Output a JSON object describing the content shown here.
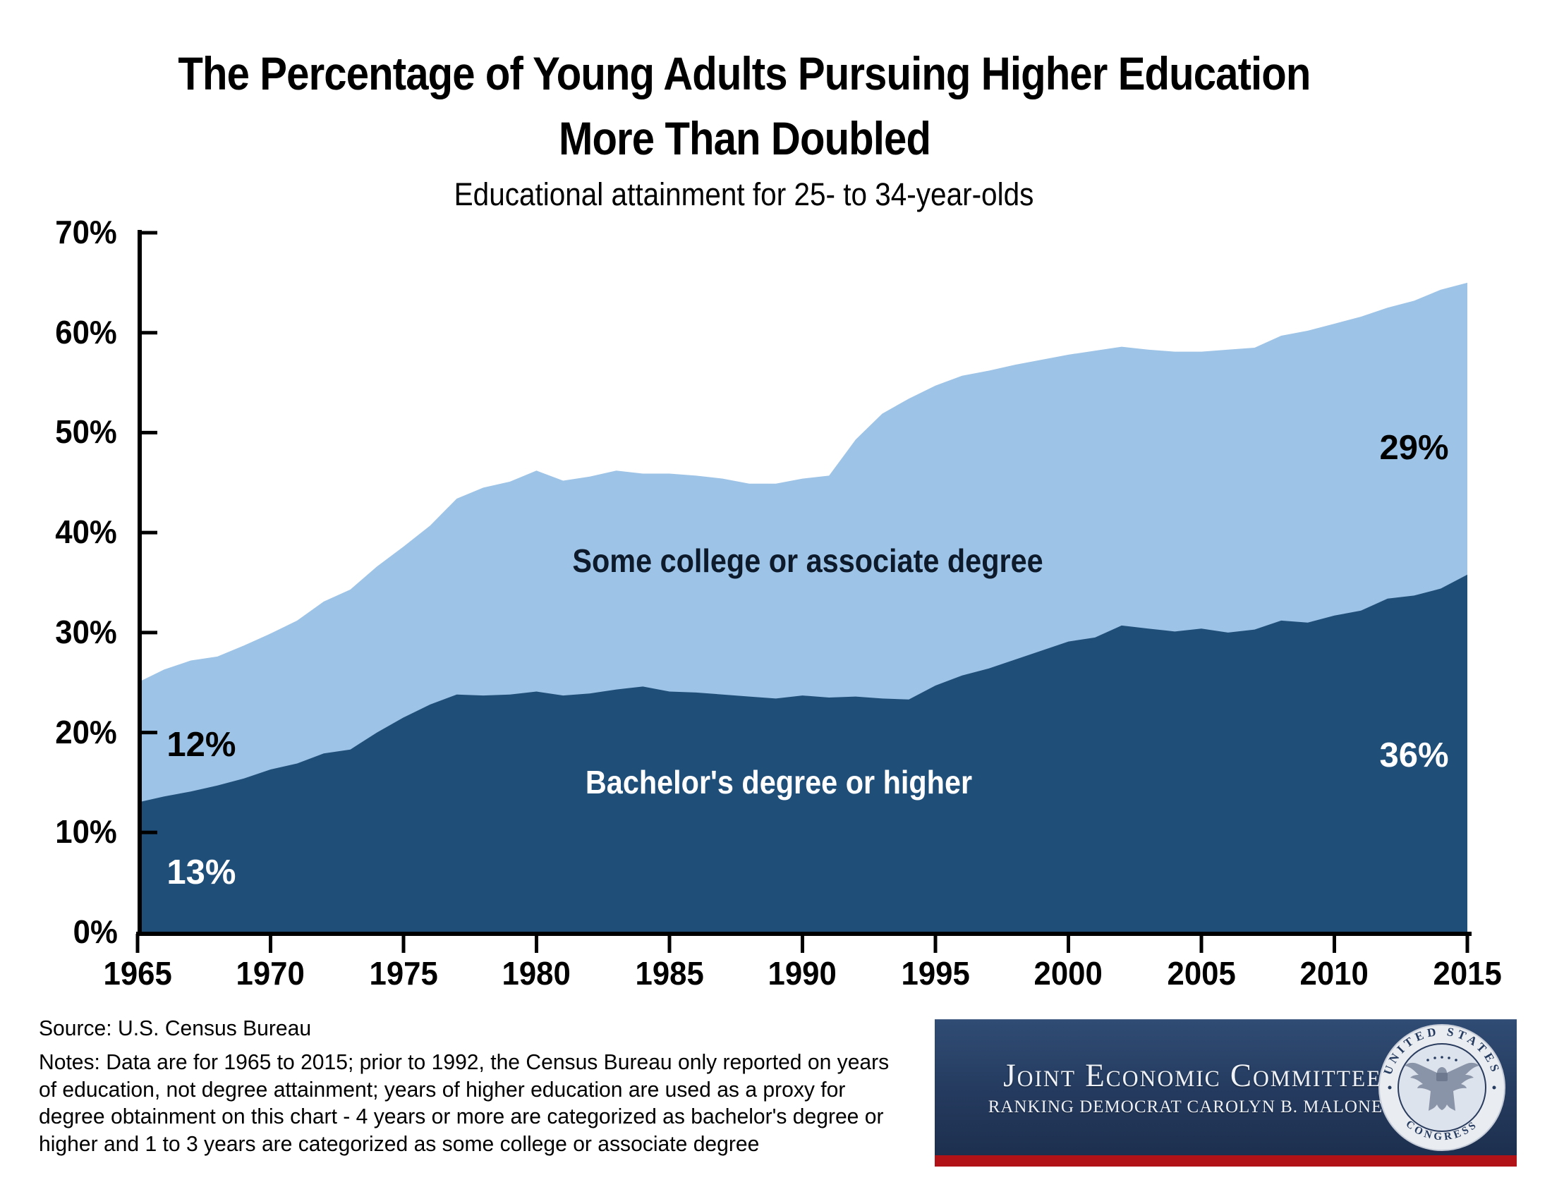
{
  "title": {
    "line1": "The Percentage of Young Adults Pursuing Higher Education",
    "line2": "More Than Doubled"
  },
  "subtitle": "Educational attainment for 25- to 34-year-olds",
  "notes": {
    "source": "Source: U.S. Census Bureau",
    "lines": [
      "Notes: Data are for 1965 to 2015; prior to 1992, the Census Bureau only reported on years",
      "of education, not degree attainment; years of higher education are used as a proxy for",
      "degree obtainment on this chart - 4 years or more are categorized as bachelor's degree or",
      "higher and 1 to 3 years are categorized as some college or associate degree"
    ]
  },
  "banner": {
    "title": "Joint Economic Committee",
    "subtitle": "RANKING DEMOCRAT CAROLYN B. MALONEY",
    "seal_top_text": "UNITED STATES",
    "seal_bottom_text": "CONGRESS",
    "background_color": "#243a5e",
    "stripe_color": "#b01218",
    "text_color": "#eef1f6"
  },
  "chart_data": {
    "type": "area",
    "stacked": true,
    "title": "Educational attainment for 25- to 34-year-olds",
    "xlabel": "",
    "ylabel": "",
    "ylim": [
      0,
      70
    ],
    "xlim": [
      1965,
      2015
    ],
    "grid": false,
    "legend_position": "in-plot labels",
    "y_tick_labels": [
      "0%",
      "10%",
      "20%",
      "30%",
      "40%",
      "50%",
      "60%",
      "70%"
    ],
    "x_tick_labels": [
      "1965",
      "1970",
      "1975",
      "1980",
      "1985",
      "1990",
      "1995",
      "2000",
      "2005",
      "2010",
      "2015"
    ],
    "x": [
      1965,
      1966,
      1967,
      1968,
      1969,
      1970,
      1971,
      1972,
      1973,
      1974,
      1975,
      1976,
      1977,
      1978,
      1979,
      1980,
      1981,
      1982,
      1983,
      1984,
      1985,
      1986,
      1987,
      1988,
      1989,
      1990,
      1991,
      1992,
      1993,
      1994,
      1995,
      1996,
      1997,
      1998,
      1999,
      2000,
      2001,
      2002,
      2003,
      2004,
      2005,
      2006,
      2007,
      2008,
      2009,
      2010,
      2011,
      2012,
      2013,
      2014,
      2015
    ],
    "series": [
      {
        "name": "Bachelor's degree or higher",
        "color": "#1F4E79",
        "values": [
          13.0,
          13.6,
          14.1,
          14.7,
          15.4,
          16.3,
          16.9,
          17.9,
          18.3,
          20.0,
          21.5,
          22.8,
          23.8,
          23.7,
          23.8,
          24.1,
          23.7,
          23.9,
          24.3,
          24.6,
          24.1,
          24.0,
          23.8,
          23.6,
          23.4,
          23.7,
          23.5,
          23.6,
          23.4,
          23.3,
          24.7,
          25.7,
          26.4,
          27.3,
          28.2,
          29.1,
          29.5,
          30.7,
          30.4,
          30.1,
          30.4,
          30.0,
          30.3,
          31.2,
          31.0,
          31.7,
          32.2,
          33.4,
          33.7,
          34.4,
          35.8
        ]
      },
      {
        "name": "Some college or associate degree",
        "color": "#9DC3E6",
        "values": [
          12.0,
          12.7,
          13.1,
          12.9,
          13.3,
          13.6,
          14.3,
          15.2,
          16.0,
          16.6,
          17.1,
          17.9,
          19.6,
          20.8,
          21.3,
          22.1,
          21.5,
          21.7,
          21.9,
          21.3,
          21.8,
          21.7,
          21.6,
          21.3,
          21.5,
          21.7,
          22.2,
          25.7,
          28.5,
          30.1,
          30.0,
          30.0,
          29.8,
          29.5,
          29.1,
          28.7,
          28.7,
          27.9,
          27.9,
          28.0,
          27.7,
          28.3,
          28.2,
          28.5,
          29.2,
          29.2,
          29.4,
          29.1,
          29.5,
          29.9,
          29.2
        ]
      }
    ],
    "annotations": [
      {
        "text": "12%",
        "year": 1967.4,
        "pct": 18.8,
        "color": "#000000",
        "kind": "pct"
      },
      {
        "text": "13%",
        "year": 1967.4,
        "pct": 6.0,
        "color": "#ffffff",
        "kind": "pct"
      },
      {
        "text": "Some college or associate degree",
        "year": 1990.2,
        "pct": 37.2,
        "color": "#0d1a2b",
        "kind": "series"
      },
      {
        "text": "Bachelor's degree or higher",
        "year": 1989.1,
        "pct": 15.0,
        "color": "#ffffff",
        "kind": "series"
      },
      {
        "text": "29%",
        "year": 2013.0,
        "pct": 48.5,
        "color": "#000000",
        "kind": "pct"
      },
      {
        "text": "36%",
        "year": 2013.0,
        "pct": 17.7,
        "color": "#ffffff",
        "kind": "pct"
      }
    ]
  }
}
